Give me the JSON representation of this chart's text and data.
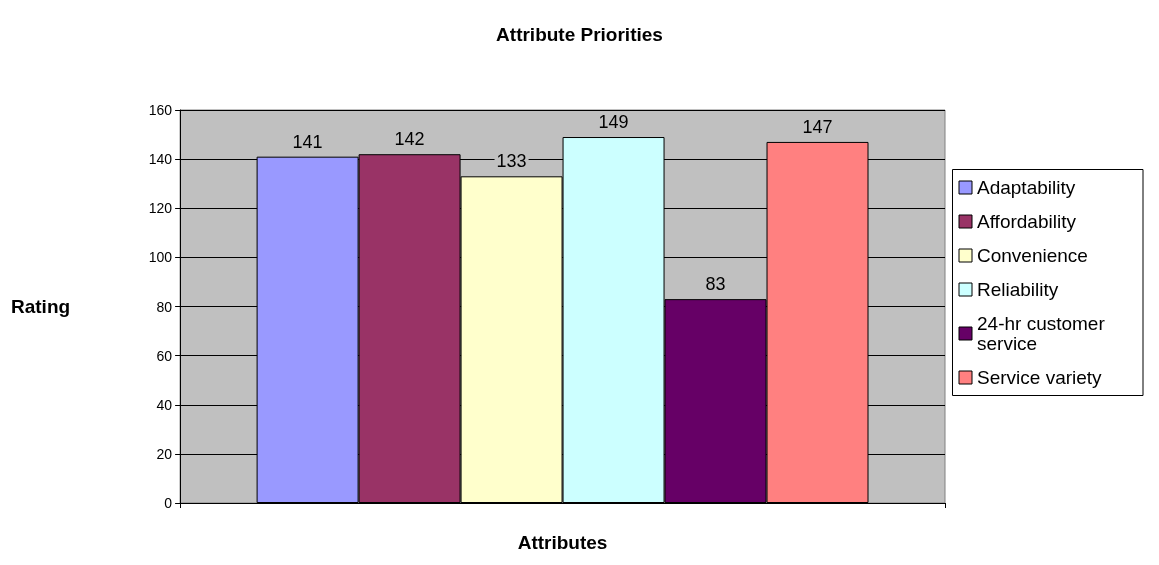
{
  "chart_data": {
    "type": "bar",
    "title": "Attribute Priorities",
    "xlabel": "Attributes",
    "ylabel": "Rating",
    "categories": [
      null
    ],
    "series": [
      {
        "name": "Adaptability",
        "color": "#9999ff",
        "values": [
          141
        ]
      },
      {
        "name": "Affordability",
        "color": "#993366",
        "values": [
          142
        ]
      },
      {
        "name": "Convenience",
        "color": "#ffffcc",
        "values": [
          133
        ]
      },
      {
        "name": "Reliability",
        "color": "#ccffff",
        "values": [
          149
        ]
      },
      {
        "name": "24-hr customer service",
        "color": "#660066",
        "values": [
          83
        ]
      },
      {
        "name": "Service variety",
        "color": "#ff8080",
        "values": [
          147
        ]
      }
    ],
    "ylim": [
      0,
      160
    ],
    "yticks": [
      0,
      20,
      40,
      60,
      80,
      100,
      120,
      140,
      160
    ],
    "grid": "y",
    "legend": "right",
    "data_labels": true
  }
}
